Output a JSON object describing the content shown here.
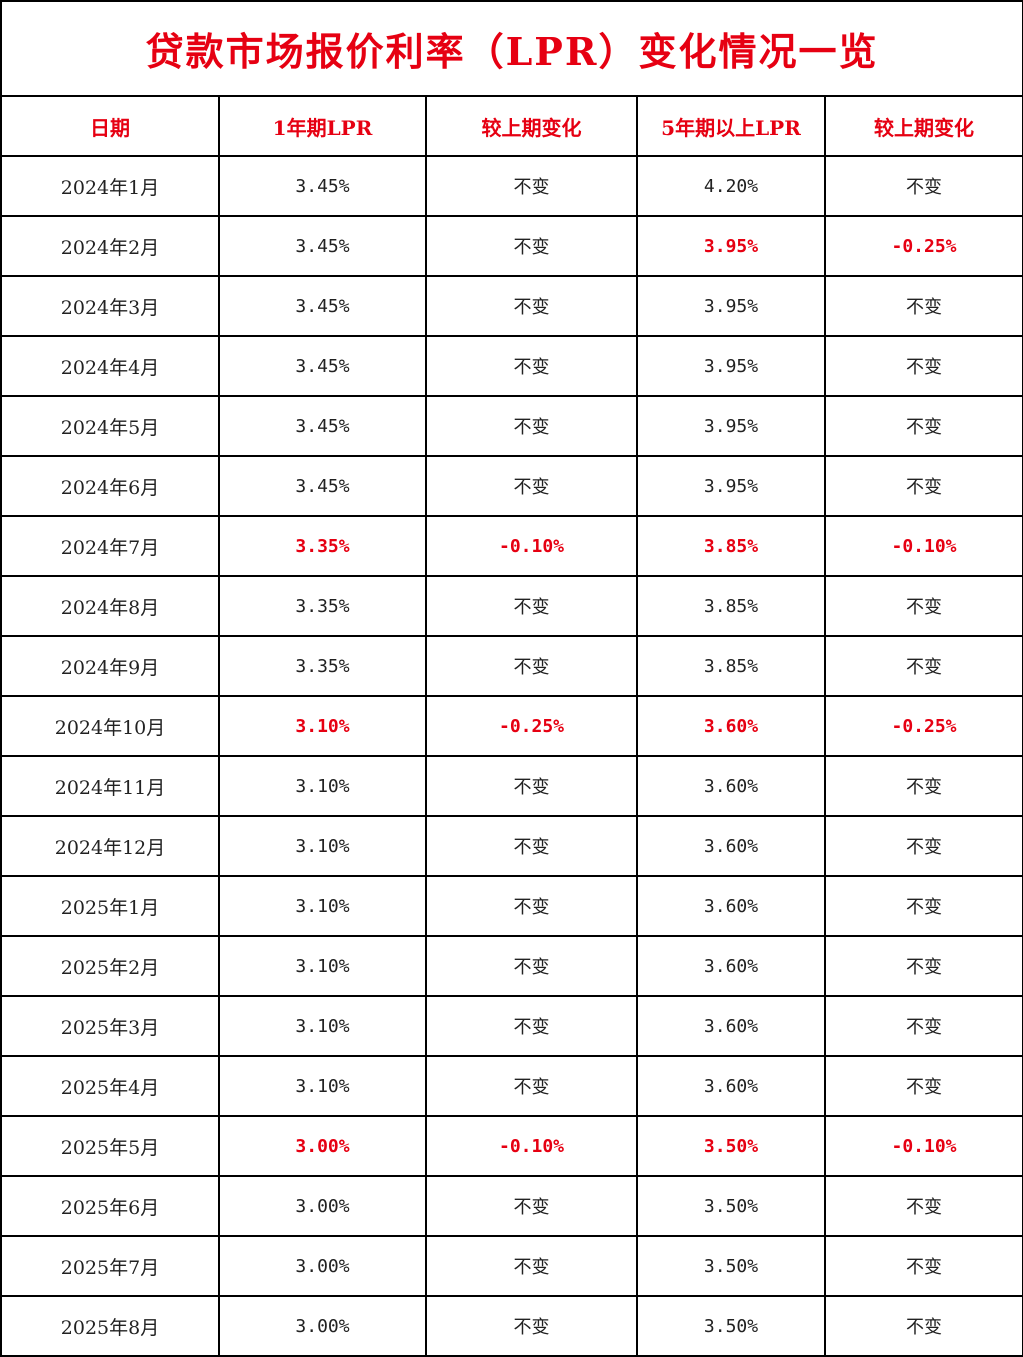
{
  "title": "贷款市场报价利率（LPR）变化情况一览",
  "colors": {
    "accent": "#e60012",
    "text": "#222222",
    "border": "#000000"
  },
  "headers": [
    "日期",
    "1年期LPR",
    "较上期变化",
    "5年期以上LPR",
    "较上期变化"
  ],
  "rows": [
    {
      "date": "2024年1月",
      "lpr1": "3.45%",
      "chg1": "不变",
      "lpr5": "4.20%",
      "chg5": "不变",
      "hl": [
        false,
        false,
        false,
        false
      ]
    },
    {
      "date": "2024年2月",
      "lpr1": "3.45%",
      "chg1": "不变",
      "lpr5": "3.95%",
      "chg5": "-0.25%",
      "hl": [
        false,
        false,
        true,
        true
      ]
    },
    {
      "date": "2024年3月",
      "lpr1": "3.45%",
      "chg1": "不变",
      "lpr5": "3.95%",
      "chg5": "不变",
      "hl": [
        false,
        false,
        false,
        false
      ]
    },
    {
      "date": "2024年4月",
      "lpr1": "3.45%",
      "chg1": "不变",
      "lpr5": "3.95%",
      "chg5": "不变",
      "hl": [
        false,
        false,
        false,
        false
      ]
    },
    {
      "date": "2024年5月",
      "lpr1": "3.45%",
      "chg1": "不变",
      "lpr5": "3.95%",
      "chg5": "不变",
      "hl": [
        false,
        false,
        false,
        false
      ]
    },
    {
      "date": "2024年6月",
      "lpr1": "3.45%",
      "chg1": "不变",
      "lpr5": "3.95%",
      "chg5": "不变",
      "hl": [
        false,
        false,
        false,
        false
      ]
    },
    {
      "date": "2024年7月",
      "lpr1": "3.35%",
      "chg1": "-0.10%",
      "lpr5": "3.85%",
      "chg5": "-0.10%",
      "hl": [
        true,
        true,
        true,
        true
      ]
    },
    {
      "date": "2024年8月",
      "lpr1": "3.35%",
      "chg1": "不变",
      "lpr5": "3.85%",
      "chg5": "不变",
      "hl": [
        false,
        false,
        false,
        false
      ]
    },
    {
      "date": "2024年9月",
      "lpr1": "3.35%",
      "chg1": "不变",
      "lpr5": "3.85%",
      "chg5": "不变",
      "hl": [
        false,
        false,
        false,
        false
      ]
    },
    {
      "date": "2024年10月",
      "lpr1": "3.10%",
      "chg1": "-0.25%",
      "lpr5": "3.60%",
      "chg5": "-0.25%",
      "hl": [
        true,
        true,
        true,
        true
      ]
    },
    {
      "date": "2024年11月",
      "lpr1": "3.10%",
      "chg1": "不变",
      "lpr5": "3.60%",
      "chg5": "不变",
      "hl": [
        false,
        false,
        false,
        false
      ]
    },
    {
      "date": "2024年12月",
      "lpr1": "3.10%",
      "chg1": "不变",
      "lpr5": "3.60%",
      "chg5": "不变",
      "hl": [
        false,
        false,
        false,
        false
      ]
    },
    {
      "date": "2025年1月",
      "lpr1": "3.10%",
      "chg1": "不变",
      "lpr5": "3.60%",
      "chg5": "不变",
      "hl": [
        false,
        false,
        false,
        false
      ]
    },
    {
      "date": "2025年2月",
      "lpr1": "3.10%",
      "chg1": "不变",
      "lpr5": "3.60%",
      "chg5": "不变",
      "hl": [
        false,
        false,
        false,
        false
      ]
    },
    {
      "date": "2025年3月",
      "lpr1": "3.10%",
      "chg1": "不变",
      "lpr5": "3.60%",
      "chg5": "不变",
      "hl": [
        false,
        false,
        false,
        false
      ]
    },
    {
      "date": "2025年4月",
      "lpr1": "3.10%",
      "chg1": "不变",
      "lpr5": "3.60%",
      "chg5": "不变",
      "hl": [
        false,
        false,
        false,
        false
      ]
    },
    {
      "date": "2025年5月",
      "lpr1": "3.00%",
      "chg1": "-0.10%",
      "lpr5": "3.50%",
      "chg5": "-0.10%",
      "hl": [
        true,
        true,
        true,
        true
      ]
    },
    {
      "date": "2025年6月",
      "lpr1": "3.00%",
      "chg1": "不变",
      "lpr5": "3.50%",
      "chg5": "不变",
      "hl": [
        false,
        false,
        false,
        false
      ]
    },
    {
      "date": "2025年7月",
      "lpr1": "3.00%",
      "chg1": "不变",
      "lpr5": "3.50%",
      "chg5": "不变",
      "hl": [
        false,
        false,
        false,
        false
      ]
    },
    {
      "date": "2025年8月",
      "lpr1": "3.00%",
      "chg1": "不变",
      "lpr5": "3.50%",
      "chg5": "不变",
      "hl": [
        false,
        false,
        false,
        false
      ]
    }
  ]
}
